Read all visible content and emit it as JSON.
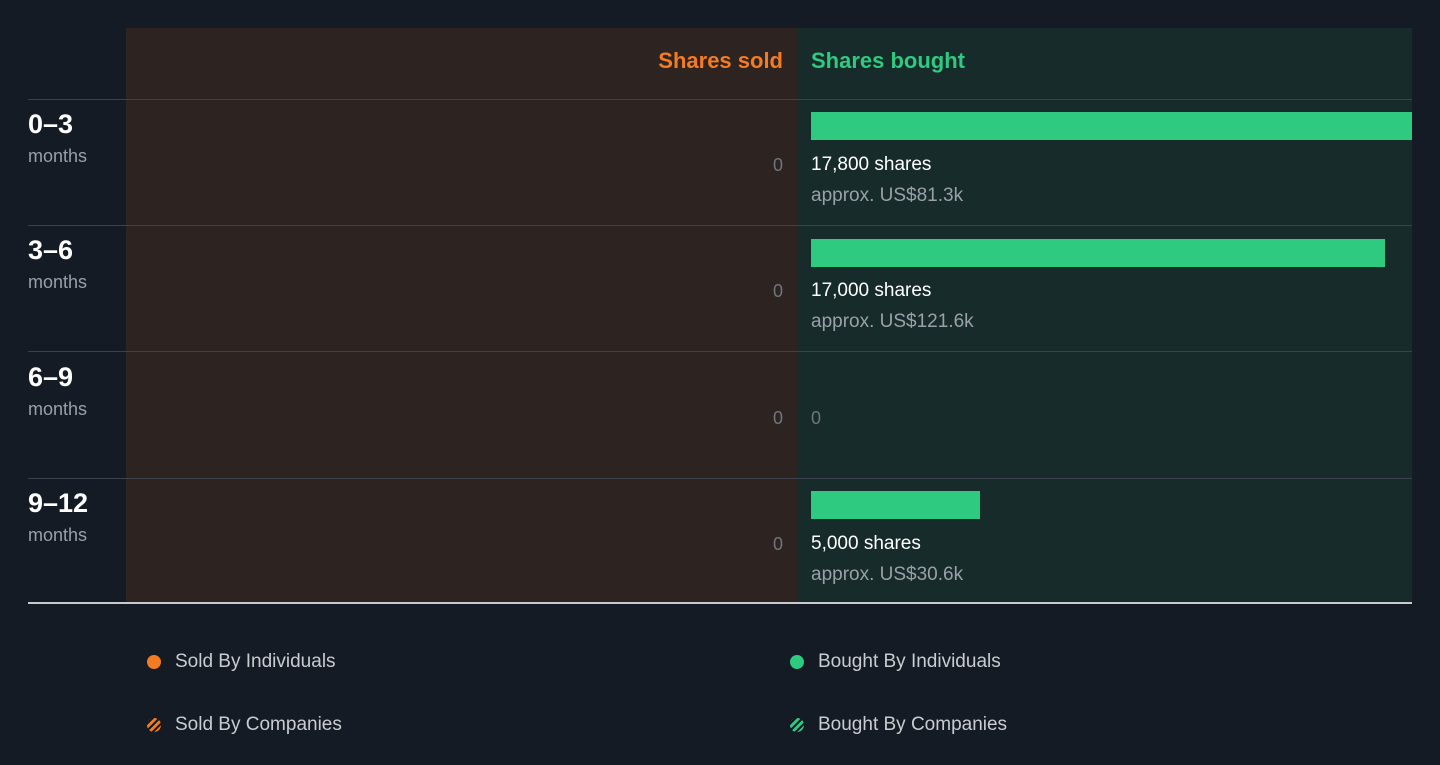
{
  "headers": {
    "sold": "Shares sold",
    "bought": "Shares bought"
  },
  "colors": {
    "sold": "#f37b22",
    "bought": "#2dca80",
    "background": "#151b24",
    "sold_panel": "#2d2422",
    "bought_panel": "#172b2b"
  },
  "chart_data": {
    "type": "bar",
    "orientation": "horizontal",
    "categories": [
      "0–3 months",
      "3–6 months",
      "6–9 months",
      "9–12 months"
    ],
    "series": [
      {
        "name": "Shares sold",
        "values": [
          0,
          0,
          0,
          0
        ]
      },
      {
        "name": "Shares bought",
        "values": [
          17800,
          17000,
          0,
          5000
        ]
      }
    ],
    "xmax": 17800,
    "legend_position": "bottom"
  },
  "rows": [
    {
      "range": "0–3",
      "unit": "months",
      "sold_value": "0",
      "bought_shares": 17800,
      "bought_label": "17,800 shares",
      "bought_value": "approx. US$81.3k"
    },
    {
      "range": "3–6",
      "unit": "months",
      "sold_value": "0",
      "bought_shares": 17000,
      "bought_label": "17,000 shares",
      "bought_value": "approx. US$121.6k"
    },
    {
      "range": "6–9",
      "unit": "months",
      "sold_value": "0",
      "bought_shares": 0,
      "bought_label": "",
      "bought_value": "",
      "bought_zero": "0"
    },
    {
      "range": "9–12",
      "unit": "months",
      "sold_value": "0",
      "bought_shares": 5000,
      "bought_label": "5,000 shares",
      "bought_value": "approx. US$30.6k"
    }
  ],
  "legend": [
    {
      "label": "Sold By Individuals",
      "icon": "solid-dot-orange"
    },
    {
      "label": "Bought By Individuals",
      "icon": "solid-dot-green"
    },
    {
      "label": "Sold By Companies",
      "icon": "hatched-dot-orange"
    },
    {
      "label": "Bought By Companies",
      "icon": "hatched-dot-green"
    }
  ]
}
